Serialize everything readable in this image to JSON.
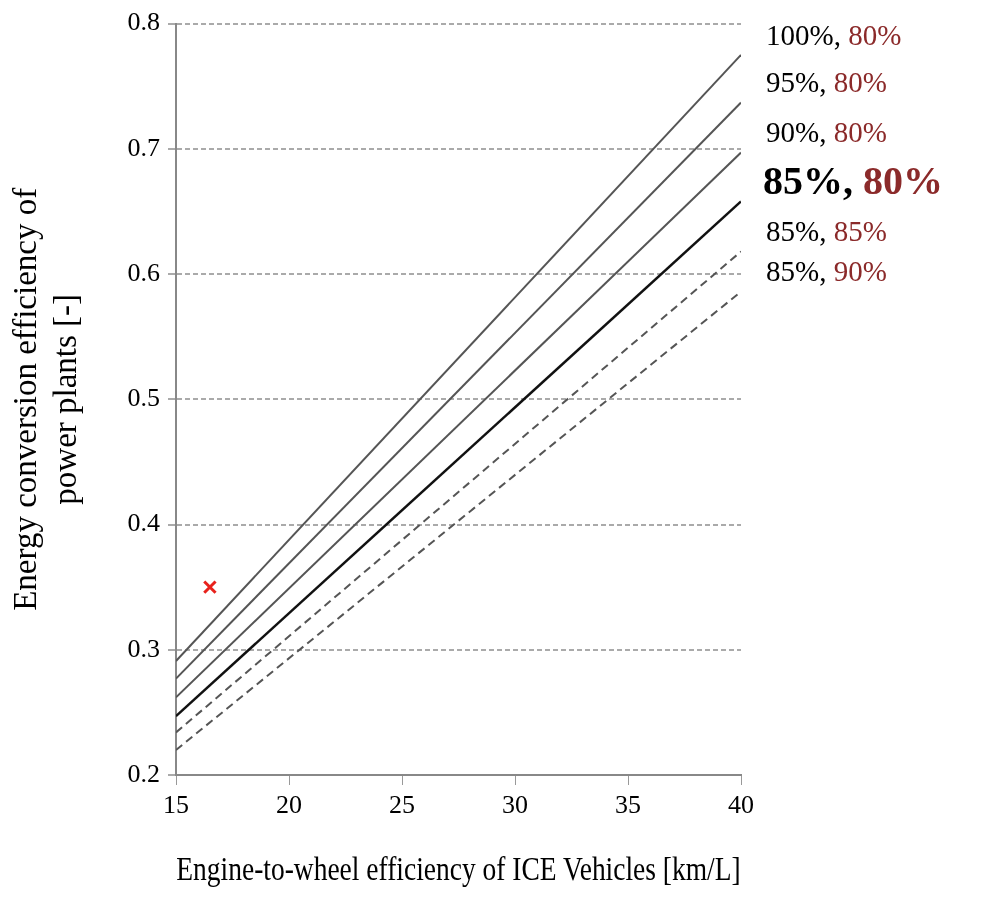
{
  "chart_data": {
    "type": "line",
    "xlabel": "Engine-to-wheel efficiency of ICE Vehicles [km/L]",
    "ylabel": "Energy conversion efficiency of power plants [-]",
    "x": [
      15,
      40
    ],
    "xlim": [
      15,
      40
    ],
    "xticks": [
      15,
      20,
      25,
      30,
      35,
      40
    ],
    "ylim": [
      0.2,
      0.8
    ],
    "yticks": [
      0.2,
      0.3,
      0.4,
      0.5,
      0.6,
      0.7,
      0.8
    ],
    "grid": "y",
    "legend": false,
    "series": [
      {
        "name": "100%, 80%",
        "color": "#555555",
        "values": [
          0.291,
          0.775
        ],
        "line_style": "solid"
      },
      {
        "name": "95%, 80%",
        "color": "#555555",
        "values": [
          0.277,
          0.737
        ],
        "line_style": "solid"
      },
      {
        "name": "90%, 80%",
        "color": "#555555",
        "values": [
          0.262,
          0.697
        ],
        "line_style": "solid"
      },
      {
        "name": "85%, 80%",
        "color": "#111111",
        "values": [
          0.247,
          0.658
        ],
        "line_style": "solid"
      },
      {
        "name": "85%, 85%",
        "color": "#555555",
        "values": [
          0.234,
          0.618
        ],
        "line_style": "dashed"
      },
      {
        "name": "85%, 90%",
        "color": "#555555",
        "values": [
          0.22,
          0.586
        ],
        "line_style": "dashed"
      },
      {
        "type": "scatter",
        "color": "#e8221c",
        "x": [
          16.5
        ],
        "values": [
          0.35
        ],
        "marker": "cross"
      }
    ]
  }
}
